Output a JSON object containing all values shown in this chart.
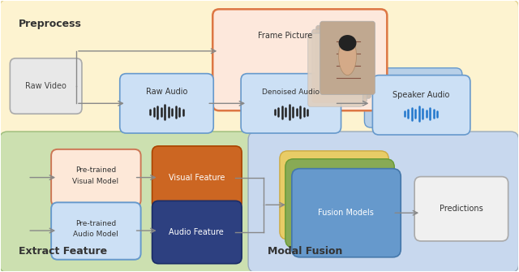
{
  "fig_width": 6.4,
  "fig_height": 3.35,
  "bg_color": "#ffffff",
  "preprocess_bg": "#fdf3d0",
  "preprocess_border": "#e0d090",
  "extract_bg": "#cce0b0",
  "extract_border": "#99bb77",
  "fusion_bg": "#c8d8ee",
  "fusion_border": "#99aabb",
  "preprocess_label": "Preprocess",
  "extract_label": "Extract Feature",
  "fusion_label": "Modal Fusion",
  "arrow_color": "#888888",
  "arrow_lw": 1.0
}
